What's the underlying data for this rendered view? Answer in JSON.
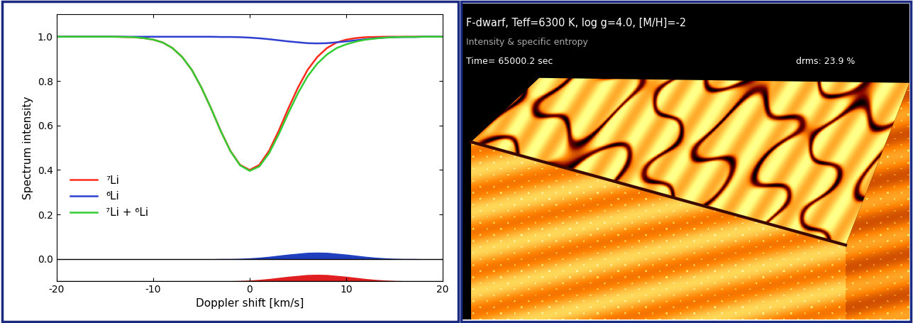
{
  "chart_data": {
    "type": "line",
    "x_label": "Doppler shift [km/s]",
    "y_label": "Spectrum intensity",
    "x": [
      -20,
      -19,
      -18,
      -17,
      -16,
      -15,
      -14,
      -13,
      -12,
      -11,
      -10,
      -9,
      -8,
      -7,
      -6,
      -5,
      -4,
      -3,
      -2,
      -1,
      0,
      1,
      2,
      3,
      4,
      5,
      6,
      7,
      8,
      9,
      10,
      11,
      12,
      13,
      14,
      15,
      16,
      17,
      18,
      19,
      20
    ],
    "series": [
      {
        "name": "⁷Li",
        "color": "#ff2a1a",
        "line_style": "solid",
        "values": [
          1,
          1,
          1,
          1,
          1,
          1,
          1,
          0.999,
          0.998,
          0.994,
          0.987,
          0.974,
          0.949,
          0.909,
          0.851,
          0.771,
          0.677,
          0.576,
          0.486,
          0.423,
          0.4,
          0.423,
          0.486,
          0.576,
          0.677,
          0.771,
          0.851,
          0.909,
          0.949,
          0.974,
          0.987,
          0.994,
          0.998,
          0.999,
          1,
          1,
          1,
          1,
          1,
          1,
          1
        ]
      },
      {
        "name": "⁶Li",
        "color": "#2f3fd0",
        "line_style": "solid",
        "values": [
          1,
          1,
          1,
          1,
          1,
          1,
          1,
          1,
          1,
          1,
          1,
          1,
          1,
          1,
          1,
          1,
          1,
          0.999,
          0.999,
          0.998,
          0.996,
          0.993,
          0.989,
          0.984,
          0.979,
          0.975,
          0.971,
          0.97,
          0.971,
          0.975,
          0.979,
          0.984,
          0.989,
          0.993,
          0.996,
          0.998,
          0.999,
          0.999,
          1,
          1,
          1
        ]
      },
      {
        "name": "⁷Li + ⁶Li",
        "color": "#33cc33",
        "line_style": "solid",
        "values": [
          1,
          1,
          1,
          1,
          1,
          1,
          1,
          0.999,
          0.998,
          0.994,
          0.987,
          0.974,
          0.949,
          0.909,
          0.851,
          0.771,
          0.677,
          0.575,
          0.485,
          0.421,
          0.396,
          0.416,
          0.475,
          0.56,
          0.656,
          0.746,
          0.822,
          0.879,
          0.92,
          0.949,
          0.966,
          0.978,
          0.987,
          0.992,
          0.996,
          0.998,
          0.999,
          0.999,
          1,
          1,
          1
        ]
      },
      {
        "type": "area",
        "color": "#2040c0",
        "baseline": 0.0,
        "values": [
          0,
          0,
          0,
          0,
          0,
          0,
          0,
          0,
          0,
          0,
          0,
          0,
          0,
          0,
          0,
          0,
          0,
          0.001,
          0.001,
          0.002,
          0.004,
          0.007,
          0.011,
          0.016,
          0.021,
          0.025,
          0.029,
          0.03,
          0.029,
          0.025,
          0.021,
          0.016,
          0.011,
          0.007,
          0.004,
          0.002,
          0.001,
          0.001,
          0,
          0,
          0
        ]
      },
      {
        "type": "area",
        "color": "#e02020",
        "baseline": -0.1,
        "values": [
          -0.1,
          -0.1,
          -0.1,
          -0.1,
          -0.1,
          -0.1,
          -0.1,
          -0.1,
          -0.1,
          -0.1,
          -0.1,
          -0.1,
          -0.1,
          -0.1,
          -0.1,
          -0.1,
          -0.1,
          -0.099,
          -0.099,
          -0.098,
          -0.096,
          -0.093,
          -0.089,
          -0.084,
          -0.079,
          -0.075,
          -0.071,
          -0.07,
          -0.071,
          -0.075,
          -0.079,
          -0.084,
          -0.089,
          -0.093,
          -0.096,
          -0.098,
          -0.099,
          -0.099,
          -0.1,
          -0.1,
          -0.1
        ]
      }
    ],
    "xlim": [
      -20,
      20
    ],
    "xticks": [
      -20,
      -10,
      0,
      10,
      20
    ],
    "ylim": [
      -0.1,
      1.1
    ],
    "yticks": [
      {
        "value": 0.0,
        "label": "0.0"
      },
      {
        "value": 0.2,
        "label": "0.2"
      },
      {
        "value": 0.4,
        "label": "0.4"
      },
      {
        "value": 0.6,
        "label": "0.6"
      },
      {
        "value": 0.8,
        "label": "0.8"
      },
      {
        "value": 1.0,
        "label": "1.0"
      }
    ],
    "legend": "lower left",
    "grid": false
  },
  "image_panel": {
    "title": "F-dwarf, Teff=6300 K, log g=4.0, [M/H]=-2",
    "subtitle": "Intensity & specific entropy",
    "time": "Time= 65000.2 sec",
    "drms": "drms: 23.9 %"
  }
}
